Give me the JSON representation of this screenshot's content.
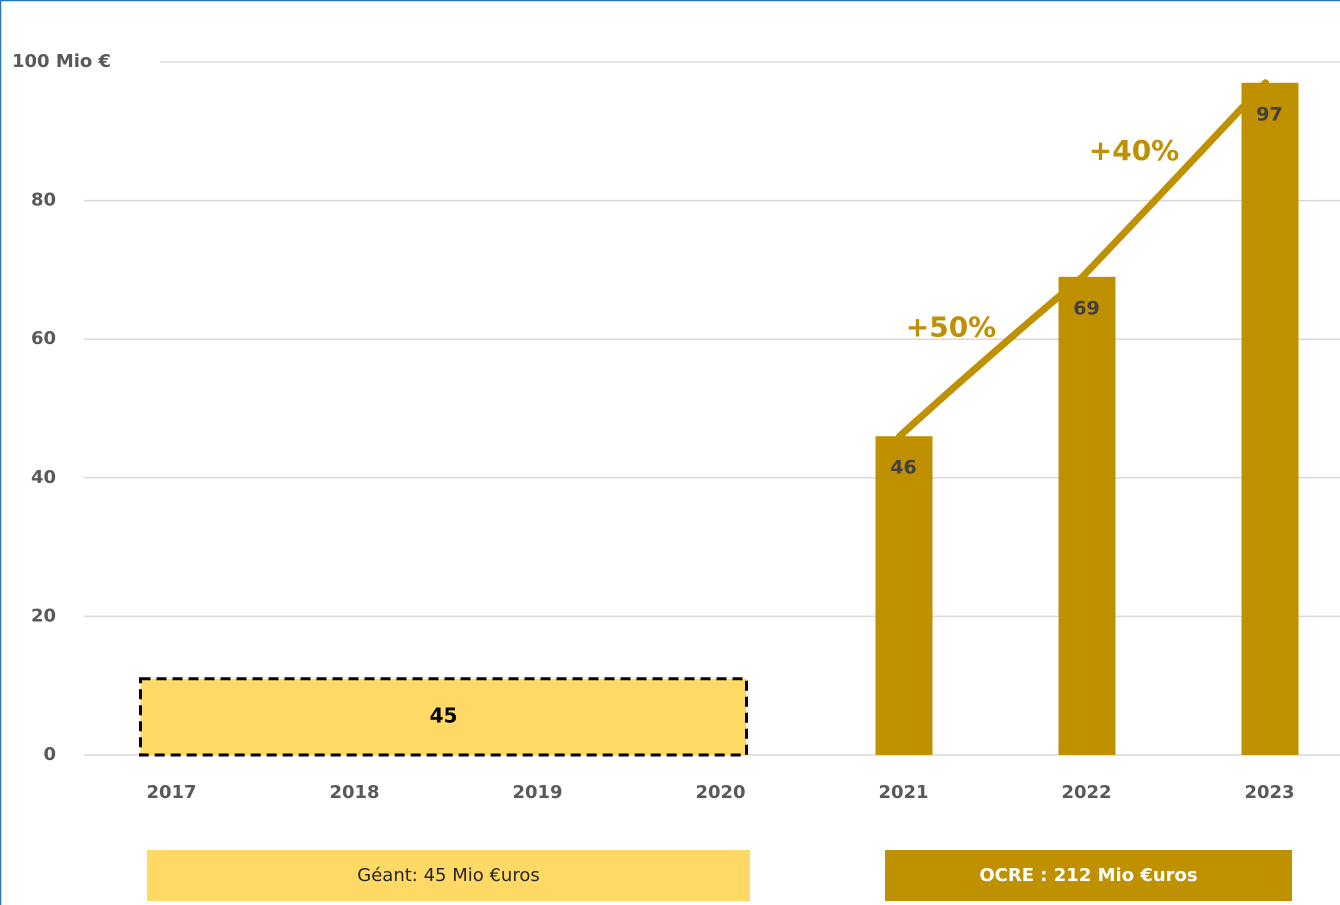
{
  "chart_data": {
    "type": "bar",
    "categories": [
      "2017",
      "2018",
      "2019",
      "2020",
      "2021",
      "2022",
      "2023"
    ],
    "values": [
      null,
      null,
      null,
      null,
      46,
      69,
      97
    ],
    "color": "#bf9000",
    "ylim": [
      0,
      100
    ],
    "yticks": [
      0,
      20,
      40,
      60,
      80,
      {
        "value": 100,
        "label": "100 Mio €"
      }
    ],
    "grid": true,
    "total_box": {
      "value": 45,
      "level": 11,
      "color": "#ffd966"
    },
    "annotations": [
      {
        "text": "+50%"
      },
      {
        "text": "+40%"
      }
    ],
    "legend": [
      {
        "name": "Géant: 45 Mio €uros",
        "color": "#ffd966"
      },
      {
        "name": "OCRE : 212 Mio €uros",
        "color": "#bf9000"
      }
    ]
  }
}
